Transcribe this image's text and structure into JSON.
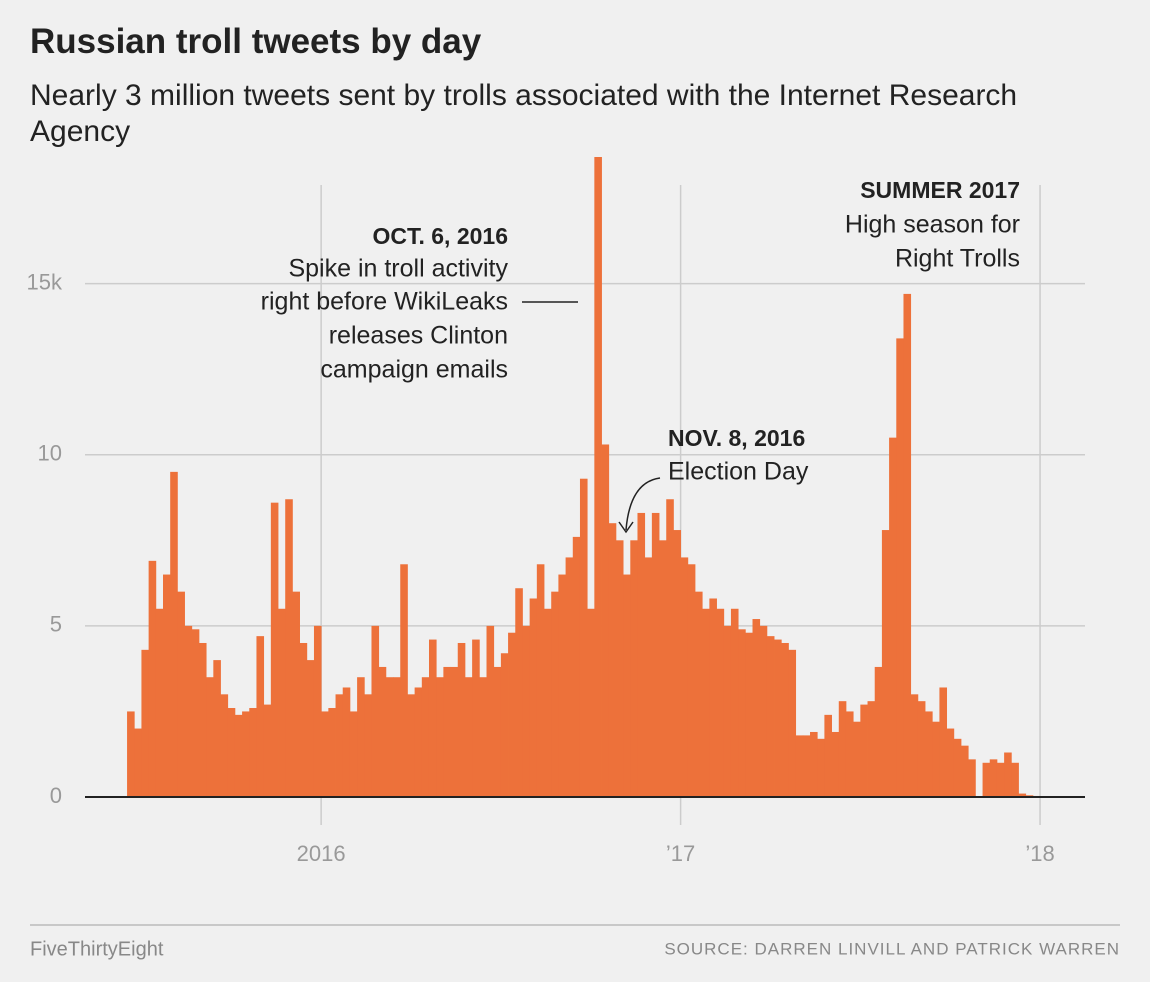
{
  "chart_data": {
    "type": "bar",
    "title": "Russian troll tweets by day",
    "subtitle": "Nearly 3 million tweets sent by trolls associated with the Internet Research Agency",
    "color": "#ed713a",
    "grid": true,
    "xlim": [
      2015.343,
      2018.125
    ],
    "xticks": [
      {
        "value": 2016,
        "label": "2016"
      },
      {
        "value": 2017,
        "label": "’17"
      },
      {
        "value": 2018,
        "label": "’18"
      }
    ],
    "ylim": [
      0,
      18.7
    ],
    "yticks": [
      0,
      5,
      10,
      {
        "value": 15,
        "label": "15k"
      }
    ],
    "x": [
      2015.47,
      2015.49,
      2015.51,
      2015.53,
      2015.55,
      2015.57,
      2015.59,
      2015.61,
      2015.63,
      2015.65,
      2015.67,
      2015.69,
      2015.71,
      2015.73,
      2015.75,
      2015.77,
      2015.79,
      2015.81,
      2015.83,
      2015.85,
      2015.87,
      2015.89,
      2015.91,
      2015.93,
      2015.95,
      2015.97,
      2015.99,
      2016.01,
      2016.03,
      2016.05,
      2016.07,
      2016.09,
      2016.11,
      2016.13,
      2016.15,
      2016.17,
      2016.19,
      2016.21,
      2016.23,
      2016.25,
      2016.27,
      2016.29,
      2016.31,
      2016.33,
      2016.35,
      2016.37,
      2016.39,
      2016.41,
      2016.43,
      2016.45,
      2016.47,
      2016.49,
      2016.51,
      2016.53,
      2016.55,
      2016.57,
      2016.59,
      2016.61,
      2016.63,
      2016.65,
      2016.67,
      2016.69,
      2016.71,
      2016.73,
      2016.75,
      2016.77,
      2016.79,
      2016.81,
      2016.83,
      2016.85,
      2016.87,
      2016.89,
      2016.91,
      2016.93,
      2016.95,
      2016.97,
      2016.99,
      2017.01,
      2017.03,
      2017.05,
      2017.07,
      2017.09,
      2017.11,
      2017.13,
      2017.15,
      2017.17,
      2017.19,
      2017.21,
      2017.23,
      2017.25,
      2017.27,
      2017.29,
      2017.31,
      2017.33,
      2017.35,
      2017.37,
      2017.39,
      2017.41,
      2017.43,
      2017.45,
      2017.47,
      2017.49,
      2017.51,
      2017.53,
      2017.55,
      2017.57,
      2017.59,
      2017.61,
      2017.63,
      2017.65,
      2017.67,
      2017.69,
      2017.71,
      2017.73,
      2017.75,
      2017.77,
      2017.79,
      2017.81,
      2017.83,
      2017.85,
      2017.87,
      2017.89,
      2017.91,
      2017.93,
      2017.95,
      2017.97,
      2017.99
    ],
    "values": [
      2.5,
      2.0,
      4.3,
      6.9,
      5.5,
      6.5,
      9.5,
      6.0,
      5.0,
      4.9,
      4.5,
      3.5,
      4.0,
      3.0,
      2.6,
      2.4,
      2.5,
      2.6,
      4.7,
      2.7,
      8.6,
      5.5,
      8.7,
      6.0,
      4.5,
      4.0,
      5.0,
      2.5,
      2.6,
      3.0,
      3.2,
      2.5,
      3.5,
      3.0,
      5.0,
      3.8,
      3.5,
      3.5,
      6.8,
      3.0,
      3.2,
      3.5,
      4.6,
      3.5,
      3.8,
      3.8,
      4.5,
      3.5,
      4.6,
      3.5,
      5.0,
      3.8,
      4.2,
      4.8,
      6.1,
      5.0,
      5.8,
      6.8,
      5.5,
      6.0,
      6.5,
      7.0,
      7.6,
      9.3,
      5.5,
      18.7,
      10.3,
      8.0,
      7.5,
      6.5,
      7.5,
      8.3,
      7.0,
      8.3,
      7.5,
      8.7,
      7.8,
      7.0,
      6.8,
      6.0,
      5.5,
      5.8,
      5.5,
      5.0,
      5.5,
      4.9,
      4.8,
      5.2,
      5.0,
      4.7,
      4.6,
      4.5,
      4.3,
      1.8,
      1.8,
      1.9,
      1.7,
      2.4,
      1.9,
      2.8,
      2.5,
      2.2,
      2.7,
      2.8,
      3.8,
      7.8,
      10.5,
      13.4,
      14.7,
      3.0,
      2.8,
      2.5,
      2.2,
      3.2,
      2.0,
      1.7,
      1.5,
      1.1,
      0,
      1.0,
      1.1,
      1.0,
      1.3,
      1.0,
      0.1,
      0.05,
      0.03
    ],
    "annotations": [
      {
        "heading": "OCT. 6, 2016",
        "lines": [
          "Spike in troll activity",
          "right before WikiLeaks",
          "releases Clinton",
          "campaign emails"
        ]
      },
      {
        "heading": "NOV. 8, 2016",
        "lines": [
          "Election Day"
        ]
      },
      {
        "heading": "SUMMER 2017",
        "lines": [
          "High season for",
          "Right Trolls"
        ]
      }
    ]
  },
  "footer": {
    "brand": "FiveThirtyEight",
    "source": "SOURCE: DARREN LINVILL AND PATRICK WARREN"
  }
}
